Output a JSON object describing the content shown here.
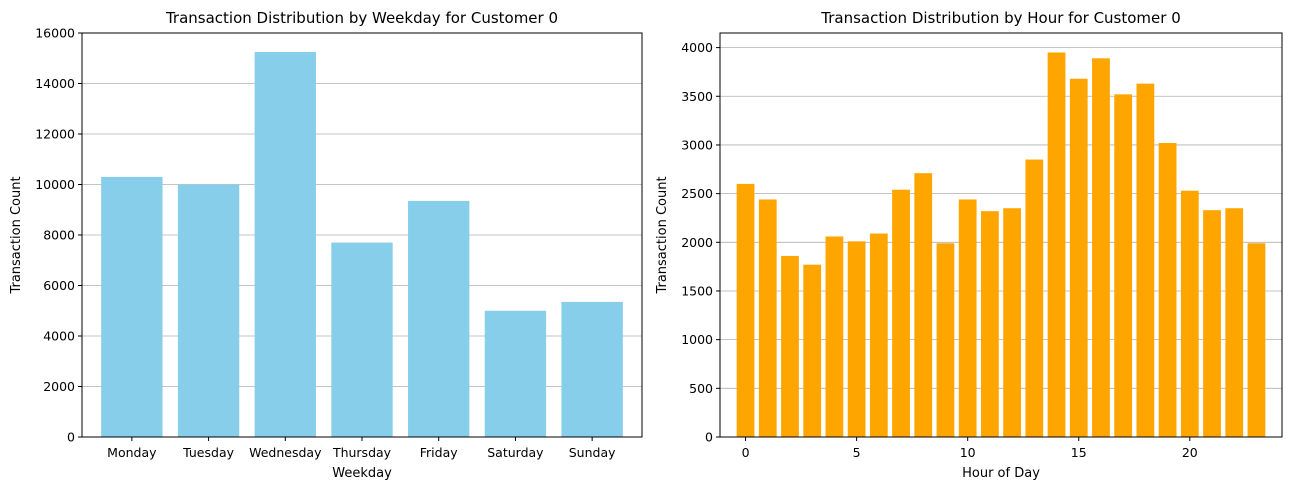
{
  "chart_data": [
    {
      "type": "bar",
      "title": "Transaction Distribution by Weekday for Customer 0",
      "xlabel": "Weekday",
      "ylabel": "Transaction Count",
      "categories": [
        "Monday",
        "Tuesday",
        "Wednesday",
        "Thursday",
        "Friday",
        "Saturday",
        "Sunday"
      ],
      "values": [
        10300,
        10000,
        15250,
        7700,
        9350,
        5000,
        5350
      ],
      "ylim": [
        0,
        16000
      ],
      "yticks": [
        0,
        2000,
        4000,
        6000,
        8000,
        10000,
        12000,
        14000,
        16000
      ],
      "grid": "y",
      "color": "#87ceeb"
    },
    {
      "type": "bar",
      "title": "Transaction Distribution by Hour for Customer 0",
      "xlabel": "Hour of Day",
      "ylabel": "Transaction Count",
      "x": [
        0,
        1,
        2,
        3,
        4,
        5,
        6,
        7,
        8,
        9,
        10,
        11,
        12,
        13,
        14,
        15,
        16,
        17,
        18,
        19,
        20,
        21,
        22,
        23
      ],
      "values": [
        2600,
        2440,
        1860,
        1770,
        2060,
        2010,
        2090,
        2540,
        2710,
        1990,
        2440,
        2320,
        2350,
        2850,
        3950,
        3680,
        3890,
        3520,
        3630,
        3020,
        2530,
        2330,
        2350,
        1990
      ],
      "xlim": [
        -1.15,
        24.15
      ],
      "xticks": [
        0,
        5,
        10,
        15,
        20
      ],
      "ylim": [
        0,
        4150
      ],
      "yticks": [
        0,
        500,
        1000,
        1500,
        2000,
        2500,
        3000,
        3500,
        4000
      ],
      "grid": "y",
      "color": "#ffa500"
    }
  ]
}
